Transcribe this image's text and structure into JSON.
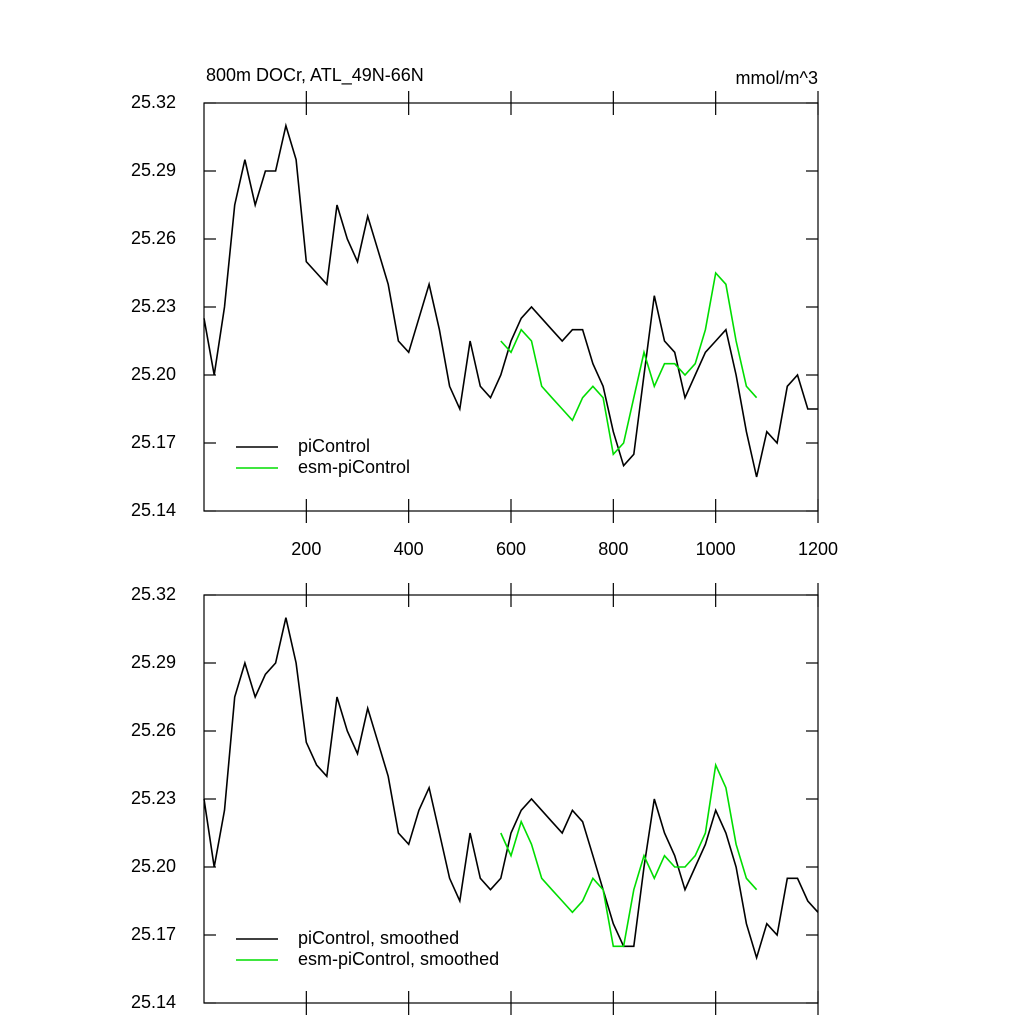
{
  "chart_data": [
    {
      "type": "line",
      "title": "800m DOCr, ATL_49N-66N",
      "units": "mmol/m^3",
      "x": [
        0,
        20,
        40,
        60,
        80,
        100,
        120,
        140,
        160,
        180,
        200,
        220,
        240,
        260,
        280,
        300,
        320,
        340,
        360,
        380,
        400,
        420,
        440,
        460,
        480,
        500,
        520,
        540,
        560,
        580,
        600,
        620,
        640,
        660,
        680,
        700,
        720,
        740,
        760,
        780,
        800,
        820,
        840,
        860,
        880,
        900,
        920,
        940,
        960,
        980,
        1000,
        1020,
        1040,
        1060,
        1080,
        1100,
        1120,
        1140,
        1160,
        1180,
        1200
      ],
      "series": [
        {
          "name": "piControl",
          "color": "#000000",
          "values": [
            25.225,
            25.2,
            25.23,
            25.275,
            25.295,
            25.275,
            25.29,
            25.29,
            25.31,
            25.295,
            25.25,
            25.245,
            25.24,
            25.275,
            25.26,
            25.25,
            25.27,
            25.255,
            25.24,
            25.215,
            25.21,
            25.225,
            25.24,
            25.22,
            25.195,
            25.185,
            25.215,
            25.195,
            25.19,
            25.2,
            25.215,
            25.225,
            25.23,
            25.225,
            25.22,
            25.215,
            25.22,
            25.22,
            25.205,
            25.195,
            25.175,
            25.16,
            25.165,
            25.2,
            25.235,
            25.215,
            25.21,
            25.19,
            25.2,
            25.21,
            25.215,
            25.22,
            25.2,
            25.175,
            25.155,
            25.175,
            25.17,
            25.195,
            25.2,
            25.185,
            25.185
          ]
        },
        {
          "name": "esm-piControl",
          "color": "#00dd00",
          "values": [
            null,
            null,
            null,
            null,
            null,
            null,
            null,
            null,
            null,
            null,
            null,
            null,
            null,
            null,
            null,
            null,
            null,
            null,
            null,
            null,
            null,
            null,
            null,
            null,
            null,
            null,
            null,
            null,
            null,
            25.215,
            25.21,
            25.22,
            25.215,
            25.195,
            25.19,
            25.185,
            25.18,
            25.19,
            25.195,
            25.19,
            25.165,
            25.17,
            25.19,
            25.21,
            25.195,
            25.205,
            25.205,
            25.2,
            25.205,
            25.22,
            25.245,
            25.24,
            25.215,
            25.195,
            25.19,
            null,
            null,
            null,
            null,
            null,
            null
          ]
        }
      ],
      "xlim": [
        0,
        1200
      ],
      "xticks": [
        200,
        400,
        600,
        800,
        1000,
        1200
      ],
      "ylim": [
        25.14,
        25.32
      ],
      "yticks": [
        25.14,
        25.17,
        {
          "value": 25.2,
          "label": "25.20"
        },
        25.23,
        25.26,
        25.29,
        25.32
      ],
      "legend": "lower left"
    },
    {
      "type": "line",
      "x": [
        0,
        20,
        40,
        60,
        80,
        100,
        120,
        140,
        160,
        180,
        200,
        220,
        240,
        260,
        280,
        300,
        320,
        340,
        360,
        380,
        400,
        420,
        440,
        460,
        480,
        500,
        520,
        540,
        560,
        580,
        600,
        620,
        640,
        660,
        680,
        700,
        720,
        740,
        760,
        780,
        800,
        820,
        840,
        860,
        880,
        900,
        920,
        940,
        960,
        980,
        1000,
        1020,
        1040,
        1060,
        1080,
        1100,
        1120,
        1140,
        1160,
        1180,
        1200
      ],
      "series": [
        {
          "name": "piControl, smoothed",
          "color": "#000000",
          "values": [
            25.23,
            25.2,
            25.225,
            25.275,
            25.29,
            25.275,
            25.285,
            25.29,
            25.31,
            25.29,
            25.255,
            25.245,
            25.24,
            25.275,
            25.26,
            25.25,
            25.27,
            25.255,
            25.24,
            25.215,
            25.21,
            25.225,
            25.235,
            25.215,
            25.195,
            25.185,
            25.215,
            25.195,
            25.19,
            25.195,
            25.215,
            25.225,
            25.23,
            25.225,
            25.22,
            25.215,
            25.225,
            25.22,
            25.205,
            25.19,
            25.175,
            25.165,
            25.165,
            25.2,
            25.23,
            25.215,
            25.205,
            25.19,
            25.2,
            25.21,
            25.225,
            25.215,
            25.2,
            25.175,
            25.16,
            25.175,
            25.17,
            25.195,
            25.195,
            25.185,
            25.18
          ]
        },
        {
          "name": "esm-piControl, smoothed",
          "color": "#00dd00",
          "values": [
            null,
            null,
            null,
            null,
            null,
            null,
            null,
            null,
            null,
            null,
            null,
            null,
            null,
            null,
            null,
            null,
            null,
            null,
            null,
            null,
            null,
            null,
            null,
            null,
            null,
            null,
            null,
            null,
            null,
            25.215,
            25.205,
            25.22,
            25.21,
            25.195,
            25.19,
            25.185,
            25.18,
            25.185,
            25.195,
            25.19,
            25.165,
            25.165,
            25.19,
            25.205,
            25.195,
            25.205,
            25.2,
            25.2,
            25.205,
            25.215,
            25.245,
            25.235,
            25.21,
            25.195,
            25.19,
            null,
            null,
            null,
            null,
            null,
            null
          ]
        }
      ],
      "xlim": [
        0,
        1200
      ],
      "xticks": [
        200,
        400,
        600,
        800,
        1000,
        1200
      ],
      "xticklabels": false,
      "ylim": [
        25.14,
        25.32
      ],
      "yticks": [
        25.14,
        25.17,
        {
          "value": 25.2,
          "label": "25.20"
        },
        25.23,
        25.26,
        25.29,
        25.32
      ],
      "legend": "lower left"
    }
  ]
}
